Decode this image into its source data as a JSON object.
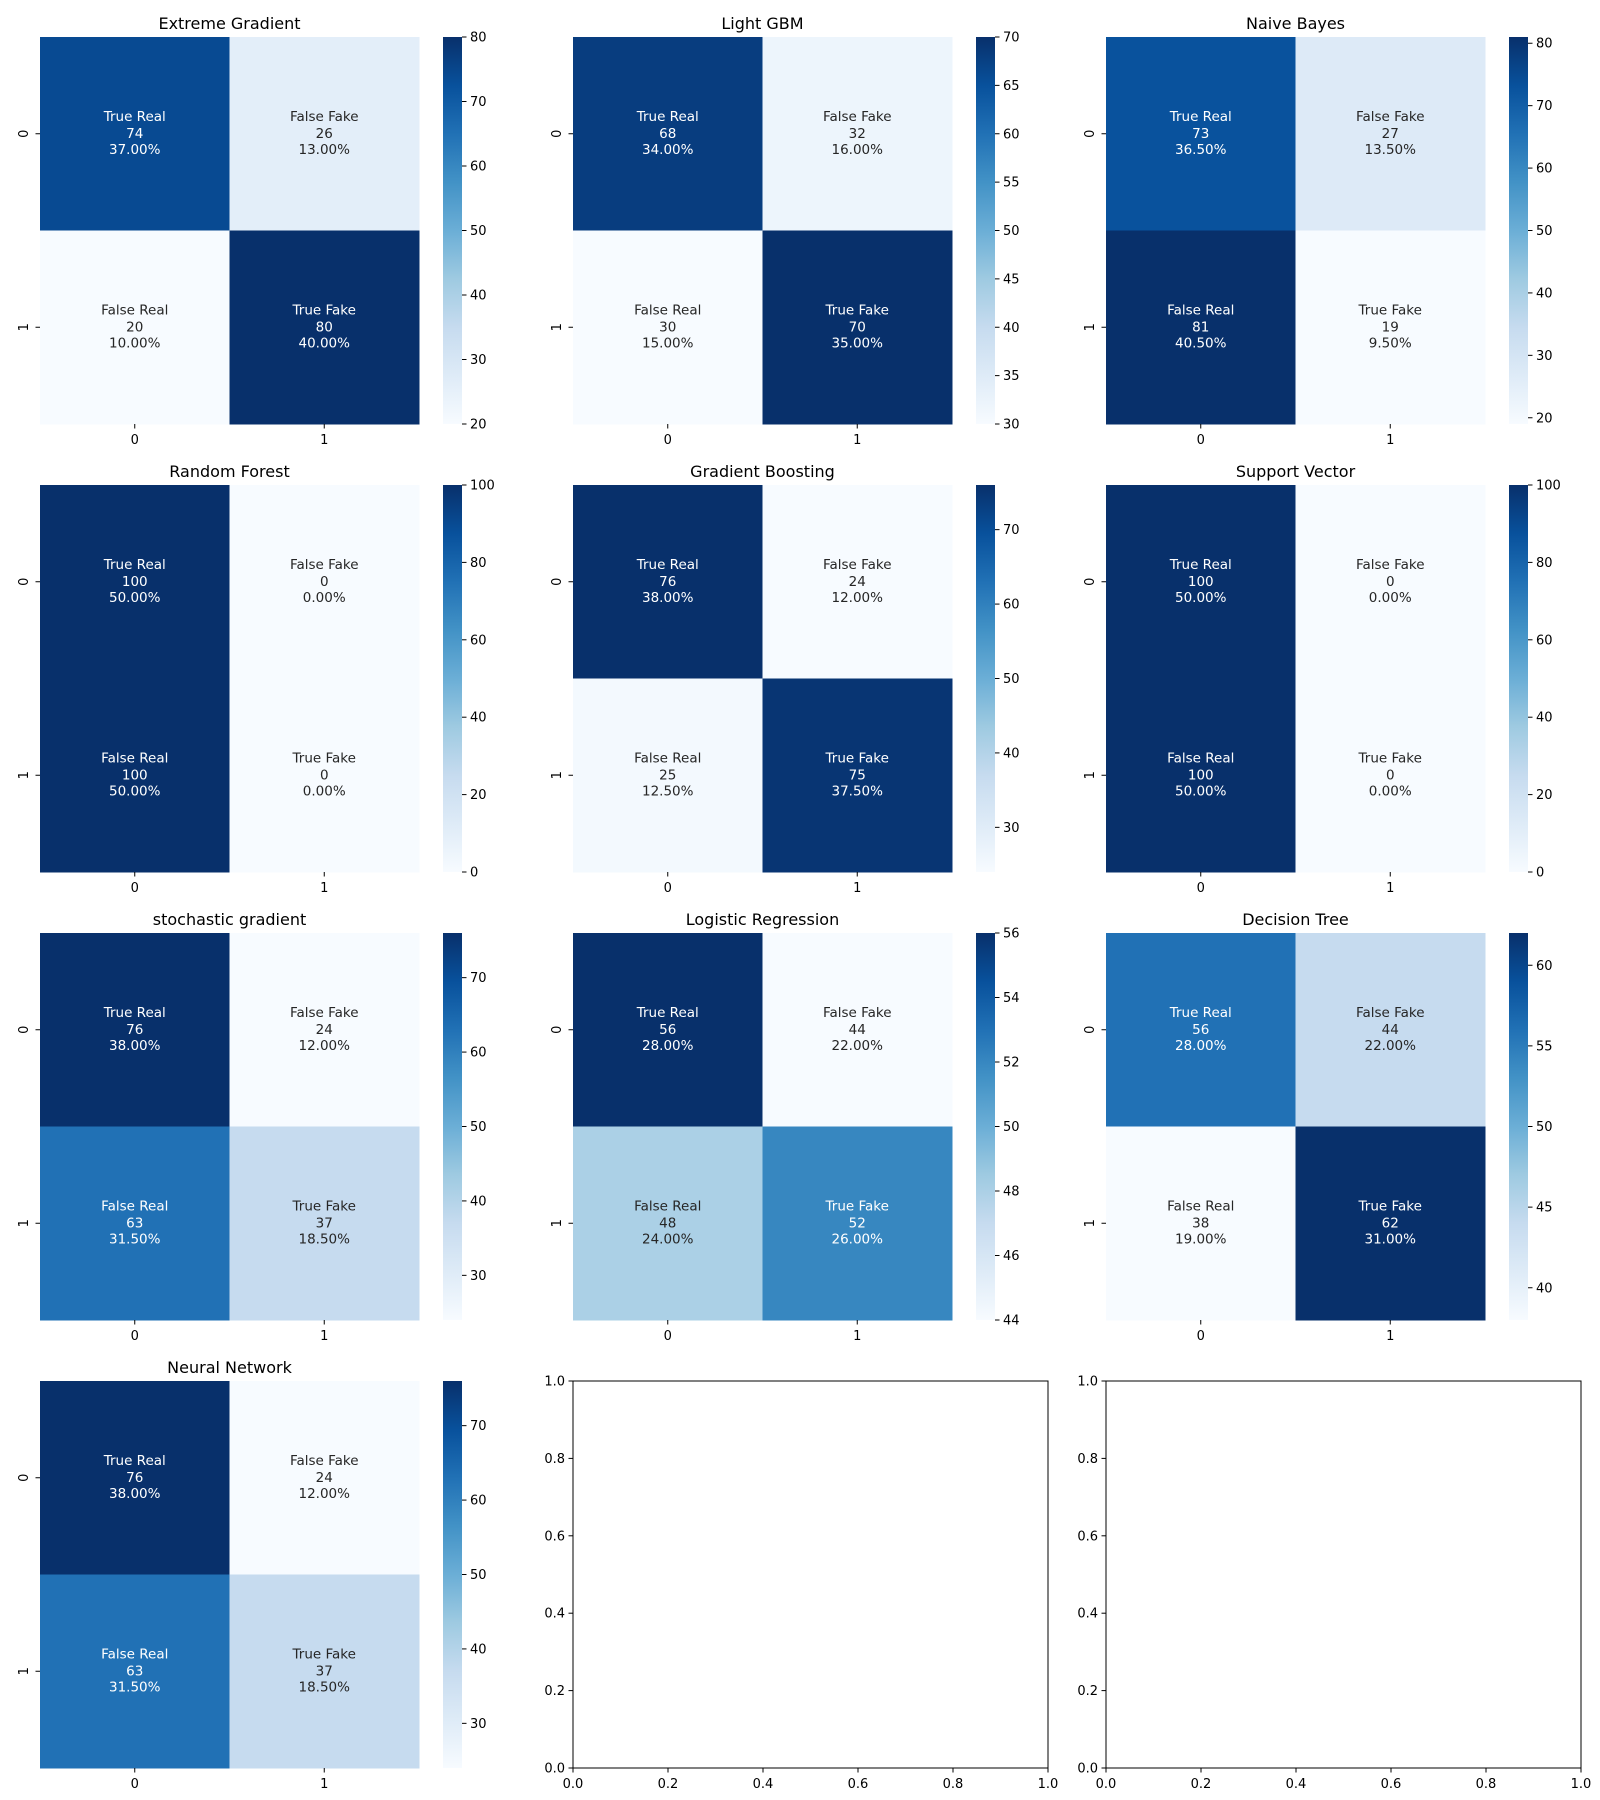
{
  "chart_data": [
    {
      "type": "heatmap",
      "title": "Extreme Gradient",
      "cells": [
        [
          "True Real",
          "False Fake"
        ],
        [
          "False Real",
          "True Fake"
        ]
      ],
      "matrix": [
        [
          74,
          26
        ],
        [
          20,
          80
        ]
      ],
      "percents": [
        [
          "37.00%",
          "13.00%"
        ],
        [
          "10.00%",
          "40.00%"
        ]
      ],
      "xticks": [
        "0",
        "1"
      ],
      "yticks": [
        "0",
        "1"
      ],
      "colorbar": {
        "min": 20,
        "max": 80,
        "ticks": [
          20,
          30,
          40,
          50,
          60,
          70,
          80
        ]
      }
    },
    {
      "type": "heatmap",
      "title": "Light GBM",
      "cells": [
        [
          "True Real",
          "False Fake"
        ],
        [
          "False Real",
          "True Fake"
        ]
      ],
      "matrix": [
        [
          68,
          32
        ],
        [
          30,
          70
        ]
      ],
      "percents": [
        [
          "34.00%",
          "16.00%"
        ],
        [
          "15.00%",
          "35.00%"
        ]
      ],
      "xticks": [
        "0",
        "1"
      ],
      "yticks": [
        "0",
        "1"
      ],
      "colorbar": {
        "min": 30,
        "max": 70,
        "ticks": [
          30,
          35,
          40,
          45,
          50,
          55,
          60,
          65,
          70
        ]
      }
    },
    {
      "type": "heatmap",
      "title": "Naive Bayes",
      "cells": [
        [
          "True Real",
          "False Fake"
        ],
        [
          "False Real",
          "True Fake"
        ]
      ],
      "matrix": [
        [
          73,
          27
        ],
        [
          81,
          19
        ]
      ],
      "percents": [
        [
          "36.50%",
          "13.50%"
        ],
        [
          "40.50%",
          "9.50%"
        ]
      ],
      "xticks": [
        "0",
        "1"
      ],
      "yticks": [
        "0",
        "1"
      ],
      "colorbar": {
        "min": 19,
        "max": 81,
        "ticks": [
          20,
          30,
          40,
          50,
          60,
          70,
          80
        ]
      }
    },
    {
      "type": "heatmap",
      "title": "Random Forest",
      "cells": [
        [
          "True Real",
          "False Fake"
        ],
        [
          "False Real",
          "True Fake"
        ]
      ],
      "matrix": [
        [
          100,
          0
        ],
        [
          100,
          0
        ]
      ],
      "percents": [
        [
          "50.00%",
          "0.00%"
        ],
        [
          "50.00%",
          "0.00%"
        ]
      ],
      "xticks": [
        "0",
        "1"
      ],
      "yticks": [
        "0",
        "1"
      ],
      "colorbar": {
        "min": 0,
        "max": 100,
        "ticks": [
          0,
          20,
          40,
          60,
          80,
          100
        ]
      }
    },
    {
      "type": "heatmap",
      "title": "Gradient Boosting",
      "cells": [
        [
          "True Real",
          "False Fake"
        ],
        [
          "False Real",
          "True Fake"
        ]
      ],
      "matrix": [
        [
          76,
          24
        ],
        [
          25,
          75
        ]
      ],
      "percents": [
        [
          "38.00%",
          "12.00%"
        ],
        [
          "12.50%",
          "37.50%"
        ]
      ],
      "xticks": [
        "0",
        "1"
      ],
      "yticks": [
        "0",
        "1"
      ],
      "colorbar": {
        "min": 24,
        "max": 76,
        "ticks": [
          30,
          40,
          50,
          60,
          70
        ]
      }
    },
    {
      "type": "heatmap",
      "title": "Support Vector",
      "cells": [
        [
          "True Real",
          "False Fake"
        ],
        [
          "False Real",
          "True Fake"
        ]
      ],
      "matrix": [
        [
          100,
          0
        ],
        [
          100,
          0
        ]
      ],
      "percents": [
        [
          "50.00%",
          "0.00%"
        ],
        [
          "50.00%",
          "0.00%"
        ]
      ],
      "xticks": [
        "0",
        "1"
      ],
      "yticks": [
        "0",
        "1"
      ],
      "colorbar": {
        "min": 0,
        "max": 100,
        "ticks": [
          0,
          20,
          40,
          60,
          80,
          100
        ]
      }
    },
    {
      "type": "heatmap",
      "title": "stochastic gradient",
      "cells": [
        [
          "True Real",
          "False Fake"
        ],
        [
          "False Real",
          "True Fake"
        ]
      ],
      "matrix": [
        [
          76,
          24
        ],
        [
          63,
          37
        ]
      ],
      "percents": [
        [
          "38.00%",
          "12.00%"
        ],
        [
          "31.50%",
          "18.50%"
        ]
      ],
      "xticks": [
        "0",
        "1"
      ],
      "yticks": [
        "0",
        "1"
      ],
      "colorbar": {
        "min": 24,
        "max": 76,
        "ticks": [
          30,
          40,
          50,
          60,
          70
        ]
      }
    },
    {
      "type": "heatmap",
      "title": "Logistic Regression",
      "cells": [
        [
          "True Real",
          "False Fake"
        ],
        [
          "False Real",
          "True Fake"
        ]
      ],
      "matrix": [
        [
          56,
          44
        ],
        [
          48,
          52
        ]
      ],
      "percents": [
        [
          "28.00%",
          "22.00%"
        ],
        [
          "24.00%",
          "26.00%"
        ]
      ],
      "xticks": [
        "0",
        "1"
      ],
      "yticks": [
        "0",
        "1"
      ],
      "colorbar": {
        "min": 44,
        "max": 56,
        "ticks": [
          44,
          46,
          48,
          50,
          52,
          54,
          56
        ]
      }
    },
    {
      "type": "heatmap",
      "title": "Decision Tree",
      "cells": [
        [
          "True Real",
          "False Fake"
        ],
        [
          "False Real",
          "True Fake"
        ]
      ],
      "matrix": [
        [
          56,
          44
        ],
        [
          38,
          62
        ]
      ],
      "percents": [
        [
          "28.00%",
          "22.00%"
        ],
        [
          "19.00%",
          "31.00%"
        ]
      ],
      "xticks": [
        "0",
        "1"
      ],
      "yticks": [
        "0",
        "1"
      ],
      "colorbar": {
        "min": 38,
        "max": 62,
        "ticks": [
          40,
          45,
          50,
          55,
          60
        ]
      }
    },
    {
      "type": "heatmap",
      "title": "Neural Network",
      "cells": [
        [
          "True Real",
          "False Fake"
        ],
        [
          "False Real",
          "True Fake"
        ]
      ],
      "matrix": [
        [
          76,
          24
        ],
        [
          63,
          37
        ]
      ],
      "percents": [
        [
          "38.00%",
          "12.00%"
        ],
        [
          "31.50%",
          "18.50%"
        ]
      ],
      "xticks": [
        "0",
        "1"
      ],
      "yticks": [
        "0",
        "1"
      ],
      "colorbar": {
        "min": 24,
        "max": 76,
        "ticks": [
          30,
          40,
          50,
          60,
          70
        ]
      }
    },
    {
      "type": "empty",
      "title": "",
      "xlim": [
        0,
        1
      ],
      "ylim": [
        0,
        1
      ],
      "xticks": [
        "0.0",
        "0.2",
        "0.4",
        "0.6",
        "0.8",
        "1.0"
      ],
      "yticks": [
        "0.0",
        "0.2",
        "0.4",
        "0.6",
        "0.8",
        "1.0"
      ]
    },
    {
      "type": "empty",
      "title": "",
      "xlim": [
        0,
        1
      ],
      "ylim": [
        0,
        1
      ],
      "xticks": [
        "0.0",
        "0.2",
        "0.4",
        "0.6",
        "0.8",
        "1.0"
      ],
      "yticks": [
        "0.0",
        "0.2",
        "0.4",
        "0.6",
        "0.8",
        "1.0"
      ]
    }
  ]
}
